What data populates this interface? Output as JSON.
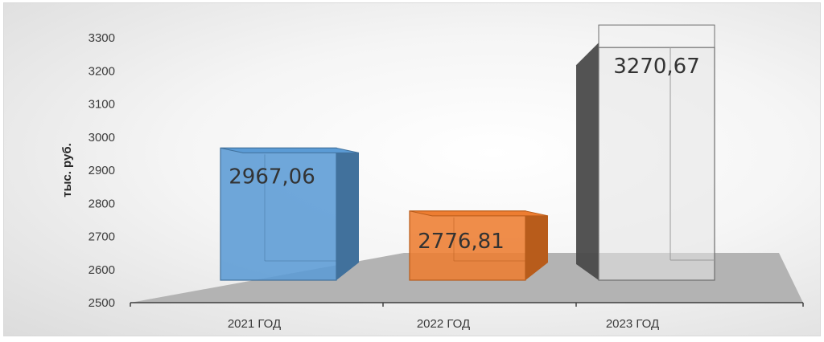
{
  "chart_data": {
    "type": "bar",
    "style": "3d-column",
    "categories": [
      "2021 ГОД",
      "2022 ГОД",
      "2023 ГОД"
    ],
    "values": [
      2967.06,
      2776.81,
      3270.67
    ],
    "data_labels": [
      "2967,06",
      "2776,81",
      "3270,67"
    ],
    "ylabel": "тыс. руб.",
    "xlabel": "",
    "ylim": [
      2500,
      3300
    ],
    "yticks": [
      "2500",
      "2600",
      "2700",
      "2800",
      "2900",
      "3000",
      "3100",
      "3200",
      "3300"
    ],
    "grid": false,
    "legend": "none",
    "colors": [
      "#5b9bd5",
      "#ed7d31",
      "#d0d0d0"
    ],
    "side_colors": [
      "#41719c",
      "#b85c1b",
      "#3c3c3c"
    ]
  }
}
